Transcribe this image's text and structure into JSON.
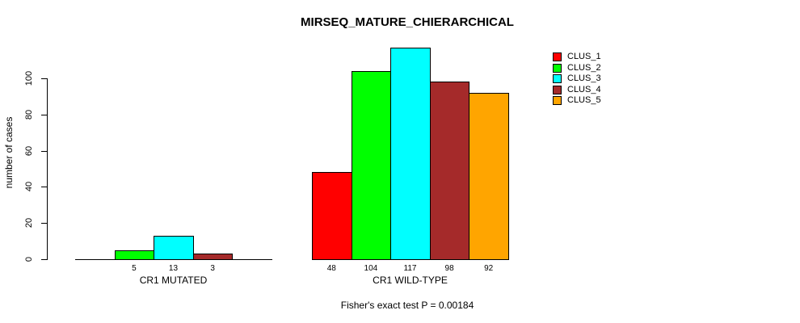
{
  "chart_data": {
    "type": "bar",
    "title": "MIRSEQ_MATURE_CHIERARCHICAL",
    "xlabel": "",
    "ylabel": "number of cases",
    "ylim": [
      0,
      117
    ],
    "yticks": [
      0,
      20,
      40,
      60,
      80,
      100
    ],
    "grid": false,
    "legend_position": "top-right",
    "series": [
      {
        "name": "CLUS_1",
        "color": "#ff0000"
      },
      {
        "name": "CLUS_2",
        "color": "#00ff00"
      },
      {
        "name": "CLUS_3",
        "color": "#00ffff"
      },
      {
        "name": "CLUS_4",
        "color": "#a52a2a"
      },
      {
        "name": "CLUS_5",
        "color": "#ffa500"
      }
    ],
    "groups": [
      {
        "label": "CR1 MUTATED",
        "values": [
          0,
          5,
          13,
          3,
          0
        ],
        "value_labels": [
          "",
          "5",
          "13",
          "3",
          ""
        ]
      },
      {
        "label": "CR1 WILD-TYPE",
        "values": [
          48,
          104,
          117,
          98,
          92
        ],
        "value_labels": [
          "48",
          "104",
          "117",
          "98",
          "92"
        ]
      }
    ],
    "annotation": "Fisher's exact test P = 0.00184"
  },
  "colors": {
    "axis": "#000000",
    "background": "#ffffff",
    "bar_border": "#000000"
  }
}
